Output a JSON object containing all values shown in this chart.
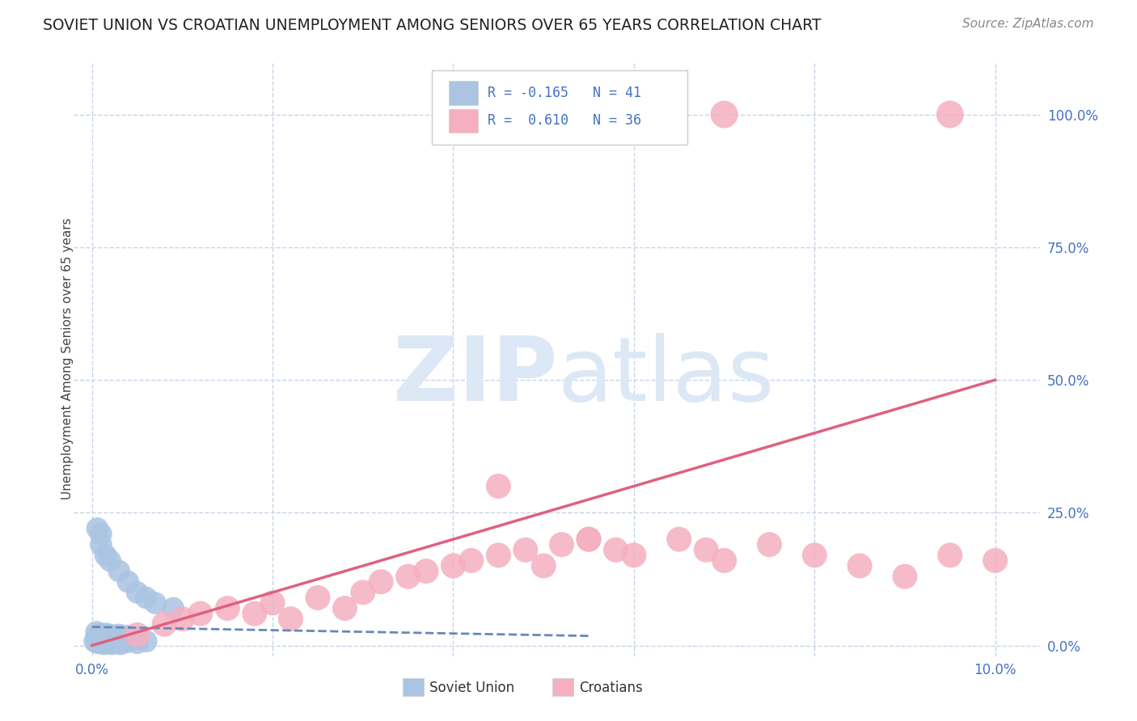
{
  "title": "SOVIET UNION VS CROATIAN UNEMPLOYMENT AMONG SENIORS OVER 65 YEARS CORRELATION CHART",
  "source": "Source: ZipAtlas.com",
  "ylabel": "Unemployment Among Seniors over 65 years",
  "ytick_values": [
    0.0,
    0.25,
    0.5,
    0.75,
    1.0
  ],
  "ytick_labels": [
    "0.0%",
    "25.0%",
    "50.0%",
    "75.0%",
    "100.0%"
  ],
  "xtick_values": [
    0.0,
    0.1
  ],
  "xtick_labels": [
    "0.0%",
    "10.0%"
  ],
  "xlim": [
    -0.002,
    0.105
  ],
  "ylim": [
    -0.02,
    1.1
  ],
  "soviet_R": -0.165,
  "soviet_N": 41,
  "croatian_R": 0.61,
  "croatian_N": 36,
  "soviet_color": "#aac4e2",
  "soviet_line_color": "#6688bb",
  "croatian_color": "#f5afc0",
  "croatian_line_color": "#e06080",
  "background_color": "#ffffff",
  "grid_color": "#c8d4e8",
  "watermark_color": "#dce8f5",
  "title_color": "#222222",
  "source_color": "#888888",
  "tick_color": "#4472c4",
  "ylabel_color": "#444444",
  "legend_border_color": "#cccccc",
  "legend_text_color": "#4472c4",
  "bottom_legend_text_color": "#333333",
  "soviet_trend_x": [
    0.0,
    0.055
  ],
  "soviet_trend_y": [
    0.035,
    0.018
  ],
  "croatian_trend_x": [
    0.0,
    0.1
  ],
  "croatian_trend_y": [
    0.0,
    0.5
  ],
  "soviet_pts_x": [
    0.0003,
    0.0005,
    0.0005,
    0.0006,
    0.0008,
    0.0008,
    0.0009,
    0.001,
    0.001,
    0.001,
    0.0012,
    0.0012,
    0.0013,
    0.0015,
    0.0015,
    0.002,
    0.002,
    0.002,
    0.0022,
    0.0025,
    0.003,
    0.003,
    0.003,
    0.0032,
    0.004,
    0.004,
    0.004,
    0.005,
    0.005,
    0.006,
    0.0006,
    0.001,
    0.001,
    0.0015,
    0.002,
    0.003,
    0.004,
    0.005,
    0.006,
    0.007,
    0.009
  ],
  "soviet_pts_y": [
    0.008,
    0.015,
    0.025,
    0.005,
    0.01,
    0.02,
    0.007,
    0.005,
    0.012,
    0.018,
    0.008,
    0.015,
    0.003,
    0.01,
    0.022,
    0.005,
    0.01,
    0.02,
    0.003,
    0.008,
    0.005,
    0.012,
    0.02,
    0.003,
    0.007,
    0.012,
    0.018,
    0.005,
    0.015,
    0.008,
    0.22,
    0.19,
    0.21,
    0.17,
    0.16,
    0.14,
    0.12,
    0.1,
    0.09,
    0.08,
    0.07
  ],
  "croatian_pts_x": [
    0.005,
    0.008,
    0.01,
    0.012,
    0.015,
    0.018,
    0.02,
    0.022,
    0.025,
    0.028,
    0.03,
    0.032,
    0.035,
    0.037,
    0.04,
    0.042,
    0.045,
    0.048,
    0.05,
    0.052,
    0.055,
    0.058,
    0.06,
    0.065,
    0.068,
    0.07,
    0.075,
    0.08,
    0.085,
    0.09,
    0.095,
    0.1,
    0.045,
    0.055,
    0.07,
    0.095
  ],
  "croatian_pts_y": [
    0.02,
    0.04,
    0.05,
    0.06,
    0.07,
    0.06,
    0.08,
    0.05,
    0.09,
    0.07,
    0.1,
    0.12,
    0.13,
    0.14,
    0.15,
    0.16,
    0.17,
    0.18,
    0.15,
    0.19,
    0.2,
    0.18,
    0.17,
    0.2,
    0.18,
    0.16,
    0.19,
    0.17,
    0.15,
    0.13,
    0.17,
    0.16,
    0.3,
    0.2,
    1.0,
    1.0
  ]
}
